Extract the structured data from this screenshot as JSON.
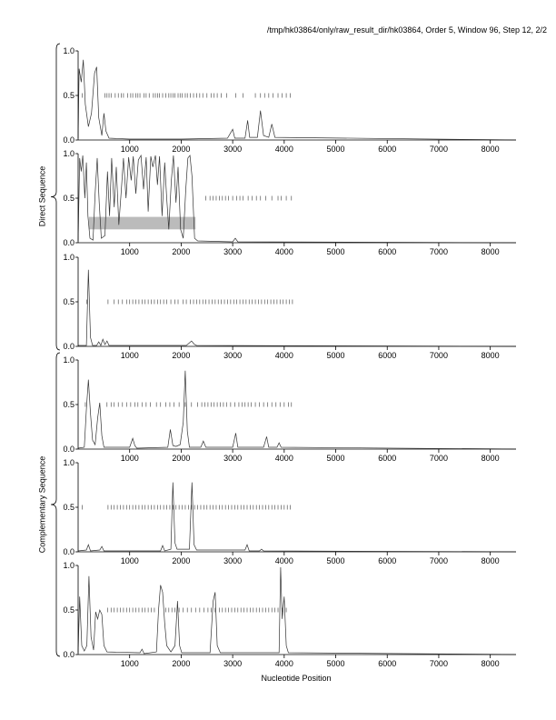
{
  "title": "/tmp/hk03864/only/raw_result_dir/hk03864, Order 5, Window 96, Step 12, 2/2",
  "group_labels": {
    "direct": "Direct Sequence",
    "complementary": "Complementary Sequence"
  },
  "chart_data": {
    "type": "line",
    "xlabel": "Nucleotide Position",
    "xlim": [
      0,
      8500
    ],
    "ylim": [
      0,
      1
    ],
    "x_ticks": [
      1000,
      2000,
      3000,
      4000,
      5000,
      6000,
      7000,
      8000
    ],
    "y_ticks": [
      "0.0",
      "0.5",
      "1.0"
    ],
    "colors": {
      "line": "#333333",
      "shade": "#bbbbbb",
      "axis": "#000000"
    },
    "panels": [
      {
        "group": "direct",
        "series": [
          [
            0,
            0.02
          ],
          [
            20,
            0.8
          ],
          [
            60,
            0.65
          ],
          [
            100,
            0.9
          ],
          [
            140,
            0.4
          ],
          [
            200,
            0.15
          ],
          [
            260,
            0.3
          ],
          [
            320,
            0.75
          ],
          [
            360,
            0.82
          ],
          [
            400,
            0.25
          ],
          [
            460,
            0.05
          ],
          [
            500,
            0.3
          ],
          [
            540,
            0.1
          ],
          [
            600,
            0.02
          ],
          [
            1000,
            0.01
          ],
          [
            2000,
            0.01
          ],
          [
            2900,
            0.02
          ],
          [
            2960,
            0.08
          ],
          [
            3000,
            0.12
          ],
          [
            3040,
            0.02
          ],
          [
            3240,
            0.02
          ],
          [
            3290,
            0.22
          ],
          [
            3330,
            0.03
          ],
          [
            3480,
            0.03
          ],
          [
            3540,
            0.33
          ],
          [
            3600,
            0.05
          ],
          [
            3700,
            0.03
          ],
          [
            3760,
            0.18
          ],
          [
            3820,
            0.03
          ],
          [
            8500,
            0.0
          ]
        ],
        "ticks_y": 0.5,
        "ticks": [
          80,
          520,
          560,
          600,
          640,
          720,
          780,
          840,
          880,
          960,
          1020,
          1060,
          1120,
          1160,
          1200,
          1280,
          1320,
          1380,
          1460,
          1500,
          1540,
          1580,
          1640,
          1700,
          1760,
          1800,
          1840,
          1880,
          1940,
          1980,
          2020,
          2080,
          2120,
          2180,
          2240,
          2300,
          2360,
          2420,
          2500,
          2580,
          2640,
          2700,
          2780,
          2880,
          3060,
          3200,
          3440,
          3540,
          3620,
          3700,
          3780,
          3880,
          3960,
          4040,
          4120
        ]
      },
      {
        "group": "direct",
        "series": [
          [
            0,
            0.02
          ],
          [
            30,
            0.95
          ],
          [
            60,
            0.8
          ],
          [
            90,
            0.98
          ],
          [
            130,
            0.5
          ],
          [
            160,
            0.9
          ],
          [
            190,
            0.3
          ],
          [
            230,
            0.05
          ],
          [
            290,
            0.03
          ],
          [
            330,
            0.55
          ],
          [
            370,
            0.95
          ],
          [
            410,
            0.45
          ],
          [
            450,
            0.05
          ],
          [
            520,
            0.08
          ],
          [
            570,
            0.8
          ],
          [
            610,
            0.3
          ],
          [
            650,
            0.95
          ],
          [
            700,
            0.4
          ],
          [
            740,
            0.85
          ],
          [
            790,
            0.2
          ],
          [
            840,
            0.6
          ],
          [
            880,
            0.95
          ],
          [
            930,
            0.5
          ],
          [
            980,
            0.96
          ],
          [
            1030,
            0.7
          ],
          [
            1070,
            0.97
          ],
          [
            1120,
            0.55
          ],
          [
            1170,
            0.93
          ],
          [
            1220,
            0.98
          ],
          [
            1270,
            0.6
          ],
          [
            1320,
            0.96
          ],
          [
            1360,
            0.35
          ],
          [
            1410,
            0.97
          ],
          [
            1450,
            0.85
          ],
          [
            1500,
            0.98
          ],
          [
            1540,
            0.65
          ],
          [
            1580,
            0.97
          ],
          [
            1630,
            0.3
          ],
          [
            1680,
            0.9
          ],
          [
            1720,
            0.5
          ],
          [
            1760,
            0.15
          ],
          [
            1810,
            0.7
          ],
          [
            1850,
            0.98
          ],
          [
            1900,
            0.45
          ],
          [
            1940,
            0.85
          ],
          [
            1990,
            0.15
          ],
          [
            2040,
            0.05
          ],
          [
            2090,
            0.6
          ],
          [
            2130,
            0.95
          ],
          [
            2170,
            0.98
          ],
          [
            2210,
            0.75
          ],
          [
            2260,
            0.05
          ],
          [
            2320,
            0.02
          ],
          [
            3000,
            0.01
          ],
          [
            3050,
            0.05
          ],
          [
            3100,
            0.01
          ],
          [
            8500,
            0.0
          ]
        ],
        "shade": {
          "x": [
            210,
            2280
          ],
          "y": [
            0.15,
            0.29
          ]
        },
        "ticks_y": 0.5,
        "ticks": [
          2480,
          2560,
          2620,
          2680,
          2740,
          2800,
          2860,
          2920,
          3000,
          3080,
          3140,
          3200,
          3300,
          3380,
          3460,
          3540,
          3640,
          3760,
          3880,
          3940,
          4040,
          4140
        ]
      },
      {
        "group": "direct",
        "series": [
          [
            0,
            0.01
          ],
          [
            160,
            0.01
          ],
          [
            200,
            0.86
          ],
          [
            240,
            0.1
          ],
          [
            280,
            0.01
          ],
          [
            360,
            0.01
          ],
          [
            400,
            0.05
          ],
          [
            440,
            0.01
          ],
          [
            480,
            0.08
          ],
          [
            520,
            0.02
          ],
          [
            560,
            0.06
          ],
          [
            600,
            0.01
          ],
          [
            2100,
            0.01
          ],
          [
            2160,
            0.04
          ],
          [
            2200,
            0.06
          ],
          [
            2260,
            0.02
          ],
          [
            2300,
            0.01
          ],
          [
            8500,
            0.0
          ]
        ],
        "ticks_y": 0.5,
        "ticks": [
          170,
          580,
          700,
          780,
          860,
          940,
          1000,
          1060,
          1120,
          1180,
          1240,
          1300,
          1360,
          1420,
          1480,
          1540,
          1600,
          1660,
          1720,
          1800,
          1880,
          1940,
          2040,
          2100,
          2180,
          2240,
          2300,
          2360,
          2420,
          2480,
          2540,
          2600,
          2660,
          2720,
          2780,
          2840,
          2900,
          2960,
          3020,
          3080,
          3140,
          3200,
          3260,
          3320,
          3380,
          3440,
          3500,
          3560,
          3620,
          3680,
          3740,
          3800,
          3860,
          3920,
          3980,
          4040,
          4100,
          4160
        ]
      },
      {
        "group": "complementary",
        "series": [
          [
            0,
            0.01
          ],
          [
            120,
            0.02
          ],
          [
            160,
            0.45
          ],
          [
            200,
            0.78
          ],
          [
            240,
            0.4
          ],
          [
            280,
            0.1
          ],
          [
            330,
            0.05
          ],
          [
            380,
            0.35
          ],
          [
            420,
            0.52
          ],
          [
            460,
            0.15
          ],
          [
            500,
            0.02
          ],
          [
            1000,
            0.02
          ],
          [
            1060,
            0.12
          ],
          [
            1100,
            0.04
          ],
          [
            1140,
            0.01
          ],
          [
            1740,
            0.02
          ],
          [
            1790,
            0.22
          ],
          [
            1840,
            0.04
          ],
          [
            1900,
            0.03
          ],
          [
            1980,
            0.05
          ],
          [
            2040,
            0.3
          ],
          [
            2080,
            0.88
          ],
          [
            2120,
            0.2
          ],
          [
            2160,
            0.02
          ],
          [
            2380,
            0.02
          ],
          [
            2430,
            0.09
          ],
          [
            2480,
            0.02
          ],
          [
            3000,
            0.02
          ],
          [
            3060,
            0.18
          ],
          [
            3100,
            0.02
          ],
          [
            3600,
            0.02
          ],
          [
            3660,
            0.14
          ],
          [
            3700,
            0.02
          ],
          [
            3860,
            0.02
          ],
          [
            3900,
            0.07
          ],
          [
            3940,
            0.02
          ],
          [
            8500,
            0.0
          ]
        ],
        "ticks_y": 0.5,
        "ticks": [
          140,
          560,
          640,
          700,
          780,
          860,
          940,
          1020,
          1100,
          1160,
          1240,
          1320,
          1400,
          1520,
          1600,
          1700,
          1780,
          1860,
          1960,
          2080,
          2200,
          2320,
          2400,
          2460,
          2520,
          2580,
          2640,
          2700,
          2760,
          2820,
          2880,
          2960,
          3040,
          3120,
          3180,
          3240,
          3300,
          3360,
          3440,
          3520,
          3600,
          3680,
          3760,
          3840,
          3920,
          4000,
          4080,
          4140
        ]
      },
      {
        "group": "complementary",
        "series": [
          [
            0,
            0.01
          ],
          [
            160,
            0.02
          ],
          [
            200,
            0.08
          ],
          [
            240,
            0.01
          ],
          [
            420,
            0.02
          ],
          [
            460,
            0.06
          ],
          [
            500,
            0.01
          ],
          [
            1600,
            0.01
          ],
          [
            1640,
            0.07
          ],
          [
            1680,
            0.01
          ],
          [
            1800,
            0.03
          ],
          [
            1840,
            0.78
          ],
          [
            1880,
            0.1
          ],
          [
            1920,
            0.03
          ],
          [
            2160,
            0.03
          ],
          [
            2210,
            0.78
          ],
          [
            2250,
            0.08
          ],
          [
            2300,
            0.02
          ],
          [
            3240,
            0.02
          ],
          [
            3280,
            0.08
          ],
          [
            3320,
            0.01
          ],
          [
            3520,
            0.01
          ],
          [
            3560,
            0.03
          ],
          [
            3600,
            0.01
          ],
          [
            8500,
            0.0
          ]
        ],
        "ticks_y": 0.5,
        "ticks": [
          80,
          580,
          640,
          700,
          760,
          820,
          880,
          940,
          1000,
          1060,
          1120,
          1180,
          1240,
          1300,
          1360,
          1420,
          1480,
          1540,
          1600,
          1660,
          1720,
          1780,
          1840,
          1900,
          1960,
          2020,
          2080,
          2140,
          2200,
          2260,
          2320,
          2380,
          2440,
          2500,
          2560,
          2620,
          2680,
          2740,
          2800,
          2860,
          2920,
          2980,
          3040,
          3100,
          3160,
          3220,
          3280,
          3340,
          3400,
          3460,
          3520,
          3580,
          3640,
          3700,
          3760,
          3820,
          3880,
          3940,
          4000,
          4060,
          4120
        ]
      },
      {
        "group": "complementary",
        "series": [
          [
            0,
            0.02
          ],
          [
            30,
            0.65
          ],
          [
            70,
            0.1
          ],
          [
            120,
            0.04
          ],
          [
            170,
            0.1
          ],
          [
            210,
            0.88
          ],
          [
            250,
            0.2
          ],
          [
            300,
            0.05
          ],
          [
            340,
            0.48
          ],
          [
            380,
            0.4
          ],
          [
            420,
            0.5
          ],
          [
            460,
            0.45
          ],
          [
            500,
            0.1
          ],
          [
            560,
            0.03
          ],
          [
            1200,
            0.02
          ],
          [
            1240,
            0.06
          ],
          [
            1280,
            0.01
          ],
          [
            1520,
            0.03
          ],
          [
            1560,
            0.5
          ],
          [
            1600,
            0.78
          ],
          [
            1640,
            0.7
          ],
          [
            1680,
            0.35
          ],
          [
            1720,
            0.1
          ],
          [
            1800,
            0.03
          ],
          [
            1880,
            0.1
          ],
          [
            1930,
            0.6
          ],
          [
            1970,
            0.1
          ],
          [
            2010,
            0.02
          ],
          [
            2560,
            0.02
          ],
          [
            2620,
            0.6
          ],
          [
            2660,
            0.7
          ],
          [
            2700,
            0.1
          ],
          [
            2760,
            0.02
          ],
          [
            3900,
            0.02
          ],
          [
            3930,
            0.98
          ],
          [
            3960,
            0.4
          ],
          [
            4000,
            0.65
          ],
          [
            4040,
            0.1
          ],
          [
            4080,
            0.02
          ],
          [
            8500,
            0.0
          ]
        ],
        "ticks_y": 0.5,
        "ticks": [
          570,
          640,
          700,
          760,
          820,
          880,
          940,
          1000,
          1060,
          1120,
          1180,
          1240,
          1300,
          1360,
          1420,
          1480,
          1700,
          1760,
          1820,
          1880,
          1960,
          2040,
          2120,
          2200,
          2280,
          2360,
          2440,
          2520,
          2580,
          2660,
          2740,
          2800,
          2860,
          2920,
          2980,
          3040,
          3100,
          3160,
          3220,
          3280,
          3340,
          3400,
          3460,
          3520,
          3580,
          3640,
          3700,
          3760,
          3820,
          3880,
          3960,
          4040
        ]
      }
    ]
  }
}
